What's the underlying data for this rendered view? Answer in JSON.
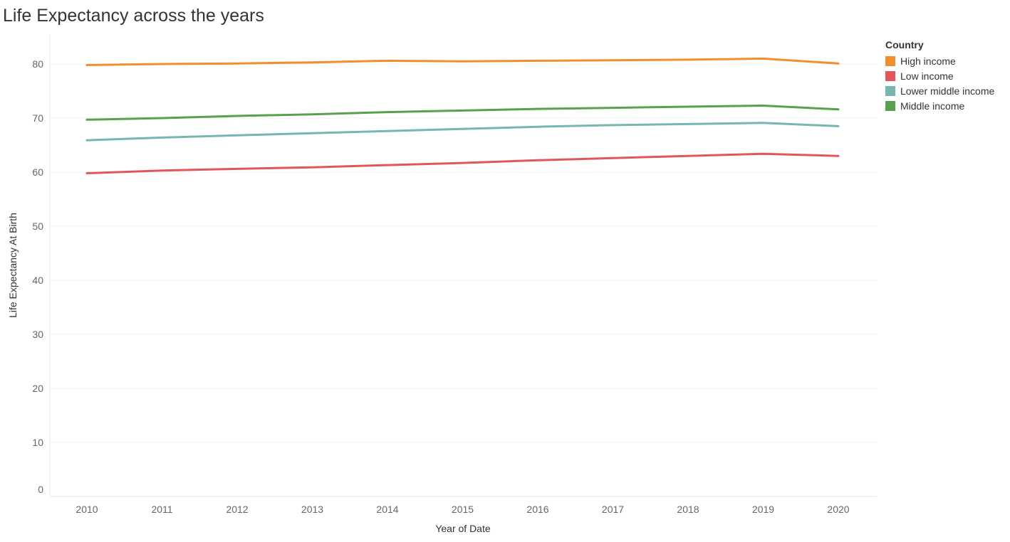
{
  "chart_data": {
    "type": "line",
    "title": "Life Expectancy across the years",
    "xlabel": "Year of Date",
    "ylabel": "Life Expectancy At Birth",
    "ylim": [
      0,
      85
    ],
    "yticks": [
      0,
      10,
      20,
      30,
      40,
      50,
      60,
      70,
      80
    ],
    "grid": true,
    "legend_position": "top-right",
    "legend_title": "Country",
    "x": [
      "2010",
      "2011",
      "2012",
      "2013",
      "2014",
      "2015",
      "2016",
      "2017",
      "2018",
      "2019",
      "2020"
    ],
    "series": [
      {
        "name": "High income",
        "color": "#F28E2B",
        "values": [
          79.8,
          80.0,
          80.1,
          80.3,
          80.6,
          80.5,
          80.6,
          80.7,
          80.8,
          81.0,
          80.1
        ]
      },
      {
        "name": "Low income",
        "color": "#E15759",
        "values": [
          59.8,
          60.3,
          60.6,
          60.9,
          61.3,
          61.7,
          62.2,
          62.6,
          63.0,
          63.4,
          63.0
        ]
      },
      {
        "name": "Lower middle income",
        "color": "#76B7B2",
        "values": [
          65.9,
          66.4,
          66.8,
          67.2,
          67.6,
          68.0,
          68.4,
          68.7,
          68.9,
          69.1,
          68.5
        ]
      },
      {
        "name": "Middle income",
        "color": "#59A14F",
        "values": [
          69.7,
          70.0,
          70.4,
          70.7,
          71.1,
          71.4,
          71.7,
          71.9,
          72.1,
          72.3,
          71.6
        ]
      }
    ]
  }
}
